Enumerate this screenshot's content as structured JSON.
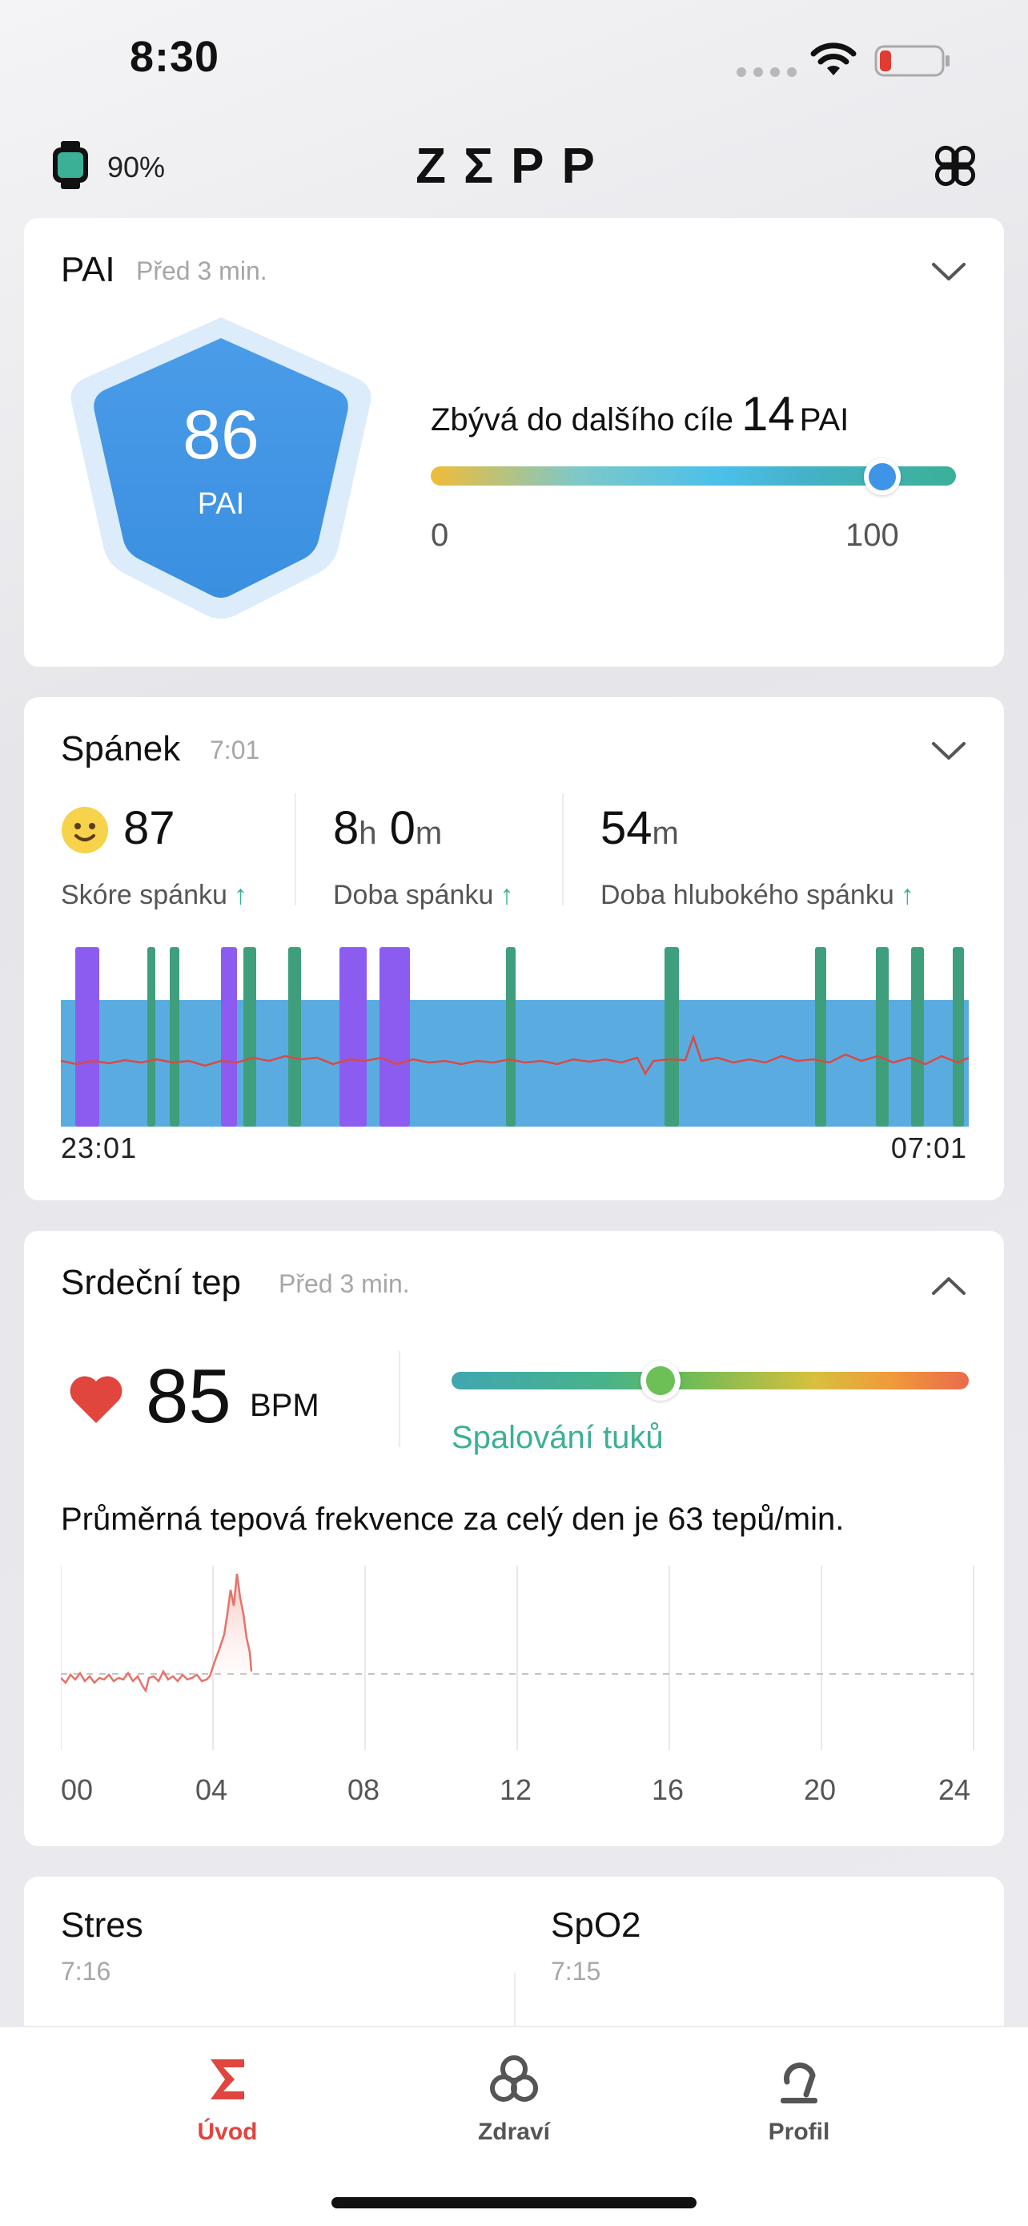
{
  "status_bar": {
    "time": "8:30"
  },
  "top_bar": {
    "watch_battery": "90%",
    "brand": "ZΣPP"
  },
  "pai": {
    "title": "PAI",
    "updated": "Před 3 min.",
    "value": "86",
    "unit": "PAI",
    "goal_text": "Zbývá do dalšího cíle",
    "goal_remaining": "14",
    "goal_unit": "PAI",
    "scale_min": "0",
    "scale_max": "100",
    "progress": 0.86
  },
  "sleep": {
    "title": "Spánek",
    "time": "7:01",
    "score": {
      "value": "87",
      "label": "Skóre spánku"
    },
    "duration": {
      "hours": "8",
      "h_unit": "h",
      "minutes": "0",
      "m_unit": "m",
      "label": "Doba spánku"
    },
    "deep": {
      "value": "54",
      "unit": "m",
      "label": "Doba hlubokého spánku"
    },
    "start": "23:01",
    "end": "07:01",
    "trend_arrow": "↑"
  },
  "heart": {
    "title": "Srdeční tep",
    "updated": "Před 3 min.",
    "value": "85",
    "unit": "BPM",
    "zone": "Spalování tuků",
    "zone_position": 0.42,
    "summary": "Průměrná tepová frekvence za celý den je 63 tepů/min.",
    "chart_data": {
      "type": "line",
      "x_ticks": [
        "00",
        "04",
        "08",
        "12",
        "16",
        "20",
        "24"
      ],
      "average_bpm": 63
    }
  },
  "stats": {
    "stress": {
      "title": "Stres",
      "time": "7:16"
    },
    "spo2": {
      "title": "SpO2",
      "time": "7:15"
    }
  },
  "tabs": [
    {
      "label": "Úvod",
      "active": true
    },
    {
      "label": "Zdraví",
      "active": false
    },
    {
      "label": "Profil",
      "active": false
    }
  ],
  "colors": {
    "accent_red": "#e0453e",
    "teal": "#3bb097",
    "pai_blue": "#3e94e6"
  }
}
